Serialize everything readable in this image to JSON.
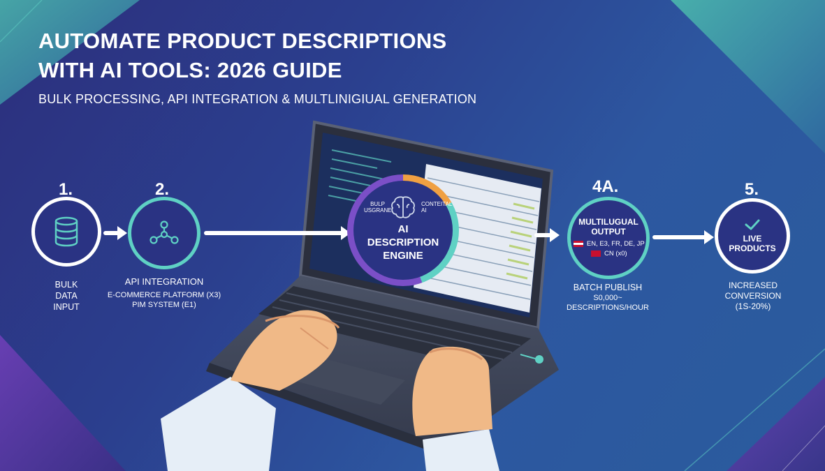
{
  "header": {
    "title_line1": "AUTOMATE PRODUCT DESCRIPTIONS",
    "title_line2": "WITH AI TOOLS: 2026 GUIDE",
    "subtitle": "BULK PROCESSING, API INTEGRATION & MULTLINIGIUAL GENERATION"
  },
  "colors": {
    "accent_teal": "#5fd1c4",
    "accent_purple": "#7b4fc7",
    "node_fill": "#2a3383"
  },
  "steps": [
    {
      "number": "1.",
      "icon": "database-icon",
      "label_lines": [
        "BULK",
        "DATA",
        "INPUT"
      ]
    },
    {
      "number": "2.",
      "icon": "network-nodes-icon",
      "label_title": "API INTEGRATION",
      "label_lines": [
        "E-COMMERCE PLATFORM (x3)",
        "PIM SYSTEM (e1)"
      ]
    },
    {
      "number": "",
      "icon": "brain-icon",
      "center_title": "AI DESCRIPTION ENGINE",
      "left_small": "BULP USGRANE",
      "right_small": "CONTEITAL AI"
    },
    {
      "number": "4A.",
      "center_title": "MULTILUGUAL OUTPUT",
      "languages_line1": "EN, E3, FR, DE, JP",
      "languages_line2": "CN (x0)",
      "label_title": "BATCH PUBLISH",
      "label_lines": [
        "S0,000~",
        "DESCRIPTIONS/HOUR"
      ]
    },
    {
      "number": "5.",
      "icon": "checkmark-icon",
      "center_title": "LIVE PRODUCTS",
      "label_lines": [
        "INCREASED",
        "CONVERSION",
        "(1S-20%)"
      ]
    }
  ]
}
